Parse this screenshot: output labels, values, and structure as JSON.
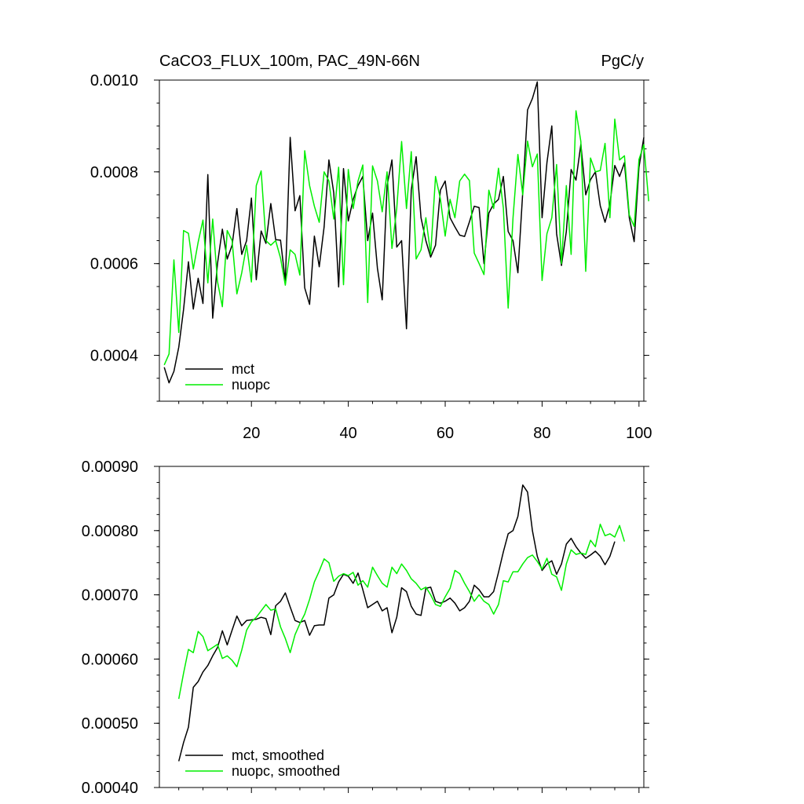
{
  "chart_data": [
    {
      "type": "line",
      "title": "CaCO3_FLUX_100m, PAC_49N-66N",
      "units": "PgC/y",
      "xlim": [
        1,
        101
      ],
      "ylim": [
        0.0003,
        0.001
      ],
      "xticks": [
        20,
        40,
        60,
        80,
        100
      ],
      "yticks": [
        0.0004,
        0.0006,
        0.0008,
        0.001
      ],
      "ytick_labels": [
        "0.0004",
        "0.0006",
        "0.0008",
        "0.0010"
      ],
      "show_x_labels": true,
      "legend_position": "bottom-left",
      "series": [
        {
          "name": "mct",
          "color": "#000000",
          "x_start": 2,
          "values": [
            0.000374,
            0.00034,
            0.000365,
            0.000418,
            0.0005,
            0.000604,
            0.000501,
            0.000568,
            0.000513,
            0.000794,
            0.000481,
            0.0006,
            0.000675,
            0.00061,
            0.00064,
            0.00072,
            0.00062,
            0.00065,
            0.000743,
            0.000565,
            0.000671,
            0.000644,
            0.000731,
            0.000652,
            0.000651,
            0.000561,
            0.000875,
            0.000715,
            0.000748,
            0.000547,
            0.000511,
            0.00066,
            0.000593,
            0.00068,
            0.000826,
            0.000754,
            0.000549,
            0.000807,
            0.000693,
            0.00074,
            0.00077,
            0.00079,
            0.00065,
            0.00071,
            0.00059,
            0.000521,
            0.00077,
            0.000826,
            0.000636,
            0.00065,
            0.000458,
            0.00076,
            0.000833,
            0.0007,
            0.00065,
            0.000614,
            0.00064,
            0.00076,
            0.00078,
            0.0007,
            0.00068,
            0.000662,
            0.000659,
            0.000691,
            0.000725,
            0.000722,
            0.0006,
            0.00071,
            0.00073,
            0.00074,
            0.00079,
            0.00067,
            0.00065,
            0.00058,
            0.000756,
            0.000935,
            0.00096,
            0.000996,
            0.0007,
            0.00082,
            0.0009,
            0.000665,
            0.000596,
            0.00067,
            0.000805,
            0.000782,
            0.00086,
            0.00075,
            0.000783,
            0.0008,
            0.000726,
            0.00069,
            0.00073,
            0.000814,
            0.00079,
            0.00082,
            0.0007,
            0.000648,
            0.00081,
            0.000875
          ]
        },
        {
          "name": "nuopc",
          "color": "#00ee00",
          "x_start": 2,
          "values": [
            0.000379,
            0.000403,
            0.000608,
            0.00045,
            0.000672,
            0.000666,
            0.000588,
            0.000647,
            0.000695,
            0.000558,
            0.000697,
            0.000561,
            0.000506,
            0.000672,
            0.00065,
            0.000534,
            0.00058,
            0.00064,
            0.00056,
            0.00077,
            0.000802,
            0.00065,
            0.00064,
            0.00065,
            0.000612,
            0.000553,
            0.00063,
            0.00062,
            0.000575,
            0.000846,
            0.00077,
            0.000725,
            0.00069,
            0.0008,
            0.00078,
            0.000697,
            0.00081,
            0.000554,
            0.000805,
            0.00072,
            0.00078,
            0.000815,
            0.000515,
            0.000813,
            0.00078,
            0.000713,
            0.0008,
            0.000633,
            0.00072,
            0.000866,
            0.00072,
            0.000844,
            0.00061,
            0.00063,
            0.0007,
            0.00062,
            0.00079,
            0.000741,
            0.00066,
            0.00074,
            0.0007,
            0.00078,
            0.000795,
            0.000781,
            0.000623,
            0.0006,
            0.000576,
            0.00076,
            0.00072,
            0.000808,
            0.000721,
            0.000503,
            0.0007,
            0.000838,
            0.00075,
            0.000867,
            0.000811,
            0.000839,
            0.000563,
            0.000665,
            0.0007,
            0.000816,
            0.0006,
            0.00077,
            0.00062,
            0.000933,
            0.000866,
            0.000583,
            0.00083,
            0.0008,
            0.000803,
            0.000862,
            0.0007,
            0.000915,
            0.000826,
            0.000835,
            0.000706,
            0.000681,
            0.000827,
            0.000859,
            0.000736
          ]
        }
      ]
    },
    {
      "type": "line",
      "title": "",
      "units": "",
      "xlim": [
        1,
        101
      ],
      "ylim": [
        0.0004,
        0.0009
      ],
      "xticks": [
        20,
        40,
        60,
        80,
        100
      ],
      "yticks": [
        0.0004,
        0.0005,
        0.0006,
        0.0007,
        0.0008,
        0.0009
      ],
      "ytick_labels": [
        "0.00040",
        "0.00050",
        "0.00060",
        "0.00070",
        "0.00080",
        "0.00090"
      ],
      "show_x_labels": false,
      "legend_position": "bottom-left",
      "series": [
        {
          "name": "mct, smoothed",
          "color": "#000000",
          "x_start": 5,
          "values": [
            0.000441,
            0.00047,
            0.000494,
            0.000556,
            0.000565,
            0.00058,
            0.00059,
            0.000605,
            0.000618,
            0.000644,
            0.000622,
            0.000645,
            0.000667,
            0.000652,
            0.00066,
            0.000661,
            0.000662,
            0.000665,
            0.000663,
            0.000638,
            0.000683,
            0.00069,
            0.000703,
            0.000681,
            0.00066,
            0.000657,
            0.00066,
            0.000637,
            0.000652,
            0.000653,
            0.000653,
            0.000695,
            0.0007,
            0.00072,
            0.000732,
            0.000729,
            0.000718,
            0.000734,
            0.000708,
            0.00068,
            0.000685,
            0.00069,
            0.000675,
            0.00068,
            0.000641,
            0.000665,
            0.000711,
            0.000705,
            0.000682,
            0.00067,
            0.000668,
            0.00071,
            0.000712,
            0.00069,
            0.000687,
            0.00069,
            0.000695,
            0.000687,
            0.000675,
            0.00068,
            0.00069,
            0.000715,
            0.000708,
            0.000697,
            0.000697,
            0.000705,
            0.000735,
            0.000767,
            0.000795,
            0.0008,
            0.000822,
            0.000871,
            0.00086,
            0.0008,
            0.00076,
            0.000738,
            0.000748,
            0.000753,
            0.000732,
            0.000748,
            0.000779,
            0.000788,
            0.000775,
            0.000765,
            0.000757,
            0.000762,
            0.000768,
            0.00076,
            0.000747,
            0.00076,
            0.000783
          ]
        },
        {
          "name": "nuopc, smoothed",
          "color": "#00ee00",
          "x_start": 5,
          "values": [
            0.000538,
            0.000578,
            0.000615,
            0.00061,
            0.000643,
            0.000635,
            0.000613,
            0.000618,
            0.000623,
            0.000601,
            0.000605,
            0.000598,
            0.000588,
            0.000614,
            0.000645,
            0.000658,
            0.000665,
            0.000675,
            0.000685,
            0.000676,
            0.000678,
            0.00065,
            0.000632,
            0.00061,
            0.000638,
            0.000655,
            0.00067,
            0.000693,
            0.00072,
            0.000737,
            0.000756,
            0.00075,
            0.000721,
            0.000729,
            0.000733,
            0.00073,
            0.000735,
            0.000715,
            0.000722,
            0.000712,
            0.000743,
            0.00073,
            0.000718,
            0.000712,
            0.000743,
            0.000733,
            0.000748,
            0.000738,
            0.000725,
            0.000718,
            0.000708,
            0.000712,
            0.0007,
            0.000685,
            0.000682,
            0.000697,
            0.00071,
            0.000738,
            0.000733,
            0.000718,
            0.000705,
            0.00069,
            0.0007,
            0.00069,
            0.000685,
            0.00067,
            0.000685,
            0.000722,
            0.00072,
            0.000736,
            0.000736,
            0.000748,
            0.000758,
            0.000762,
            0.000752,
            0.00074,
            0.000757,
            0.000732,
            0.000728,
            0.000707,
            0.000748,
            0.00077,
            0.000763,
            0.000765,
            0.000763,
            0.000785,
            0.000775,
            0.00081,
            0.000792,
            0.000795,
            0.00079,
            0.000808,
            0.000783
          ]
        }
      ]
    }
  ]
}
